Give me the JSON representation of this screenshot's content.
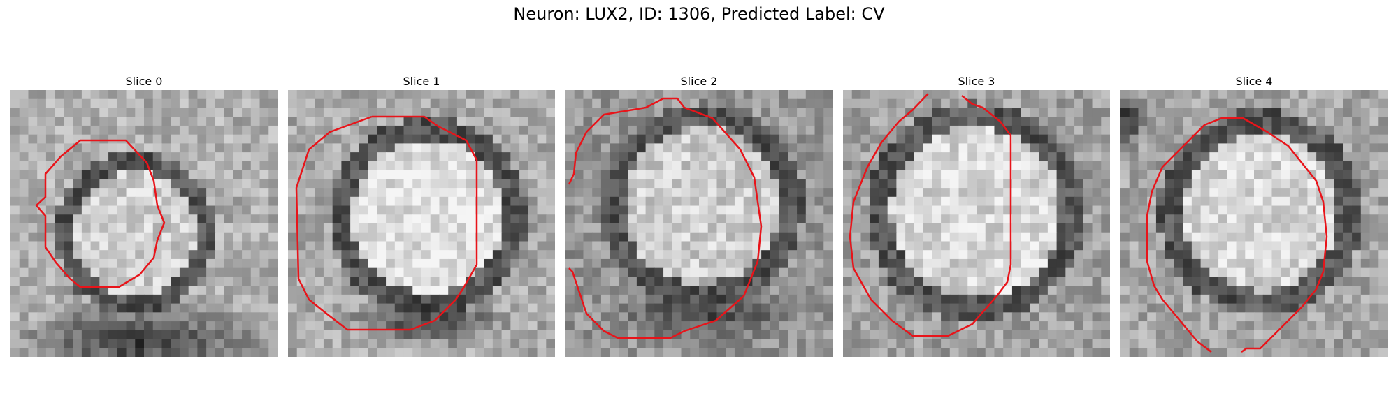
{
  "figure": {
    "title": "Neuron: LUX2, ID: 1306, Predicted Label: CV"
  },
  "panels": [
    {
      "title": "Slice 0"
    },
    {
      "title": "Slice 1"
    },
    {
      "title": "Slice 2"
    },
    {
      "title": "Slice 3"
    },
    {
      "title": "Slice 4"
    }
  ],
  "contour_color": "#e8141a"
}
